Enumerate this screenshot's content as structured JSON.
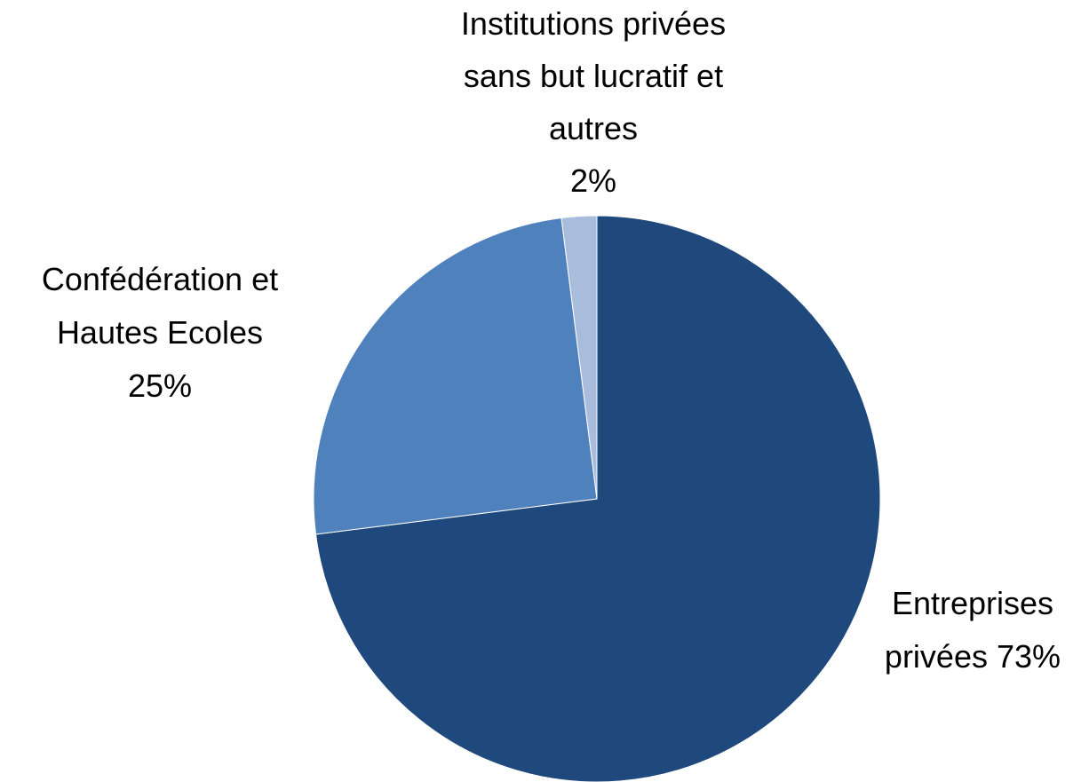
{
  "chart_data": {
    "type": "pie",
    "categories": [
      "Entreprises privées",
      "Confédération et Hautes Ecoles",
      "Institutions privées sans but lucratif et autres"
    ],
    "values": [
      73,
      25,
      2
    ],
    "value_labels": [
      "73%",
      "25%",
      "2%"
    ],
    "colors": [
      "#1f497d",
      "#4f81bd",
      "#a9bcdc"
    ]
  }
}
